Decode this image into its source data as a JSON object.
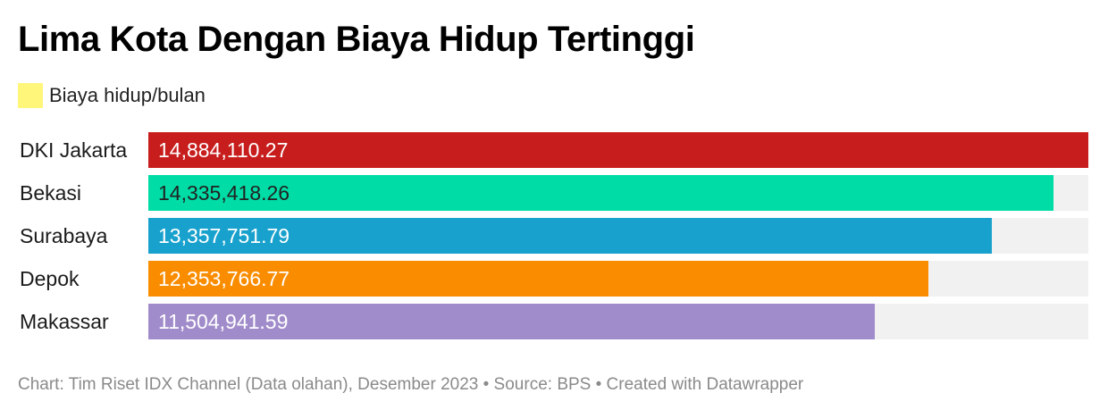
{
  "chart_data": {
    "type": "bar",
    "orientation": "horizontal",
    "title": "Lima Kota Dengan Biaya Hidup Tertinggi",
    "legend": [
      {
        "label": "Biaya hidup/bulan",
        "color": "#fff67a"
      }
    ],
    "categories": [
      "DKI Jakarta",
      "Bekasi",
      "Surabaya",
      "Depok",
      "Makassar"
    ],
    "values": [
      14884110.27,
      14335418.26,
      13357751.79,
      12353766.77,
      11504941.59
    ],
    "value_labels": [
      "14,884,110.27",
      "14,335,418.26",
      "13,357,751.79",
      "12,353,766.77",
      "11,504,941.59"
    ],
    "bar_colors": [
      "#c71e1d",
      "#00dca6",
      "#18a1cd",
      "#fa8c00",
      "#a18ccb"
    ],
    "label_colors": [
      "#ffffff",
      "#222222",
      "#ffffff",
      "#ffffff",
      "#ffffff"
    ],
    "track_color": "#f1f1f1",
    "xlim": [
      0,
      14884110.27
    ],
    "grid": false,
    "legend_position": "top-left"
  },
  "footer": {
    "text": "Chart: Tim Riset IDX Channel (Data olahan), Desember 2023 • Source: BPS • Created with Datawrapper"
  }
}
